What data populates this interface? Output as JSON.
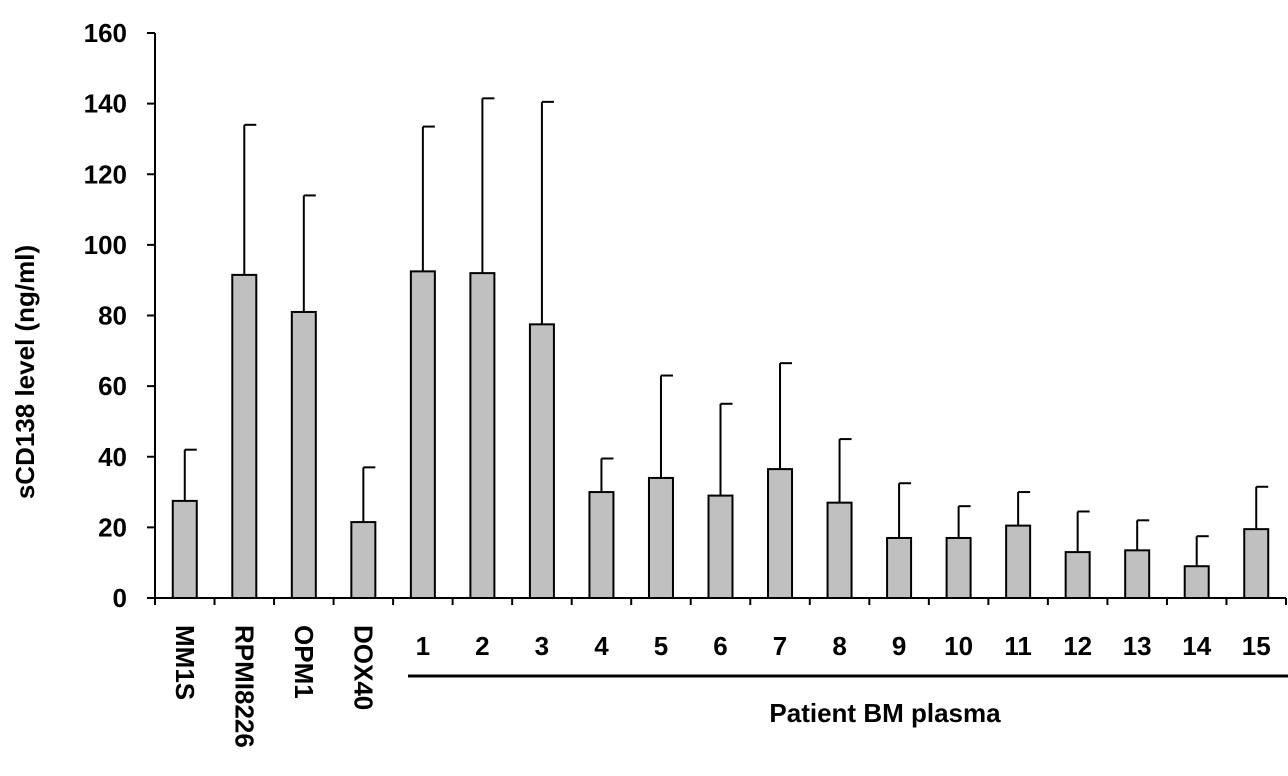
{
  "chart_data": {
    "type": "bar",
    "ylabel": "sCD138 level (ng/ml)",
    "ylim": [
      0,
      160
    ],
    "yticks": [
      0,
      20,
      40,
      60,
      80,
      100,
      120,
      140,
      160
    ],
    "grid": false,
    "categories": [
      "MM1S",
      "RPMI8226",
      "OPM1",
      "DOX40",
      "1",
      "2",
      "3",
      "4",
      "5",
      "6",
      "7",
      "8",
      "9",
      "10",
      "11",
      "12",
      "13",
      "14",
      "15"
    ],
    "rotated_categories": [
      "MM1S",
      "RPMI8226",
      "OPM1",
      "DOX40"
    ],
    "values": [
      27.5,
      91.5,
      81,
      21.5,
      92.5,
      92,
      77.5,
      30,
      34,
      29,
      36.5,
      27,
      17,
      17,
      20.5,
      13,
      13.5,
      9,
      19.5
    ],
    "error_plus": [
      14.5,
      42.5,
      33,
      15.5,
      41,
      49.5,
      63,
      9.5,
      29,
      26,
      30,
      18,
      15.5,
      9,
      9.5,
      11.5,
      8.5,
      8.5,
      12
    ],
    "bar_color": "#c0c0c0",
    "group_label": "Patient BM plasma"
  }
}
